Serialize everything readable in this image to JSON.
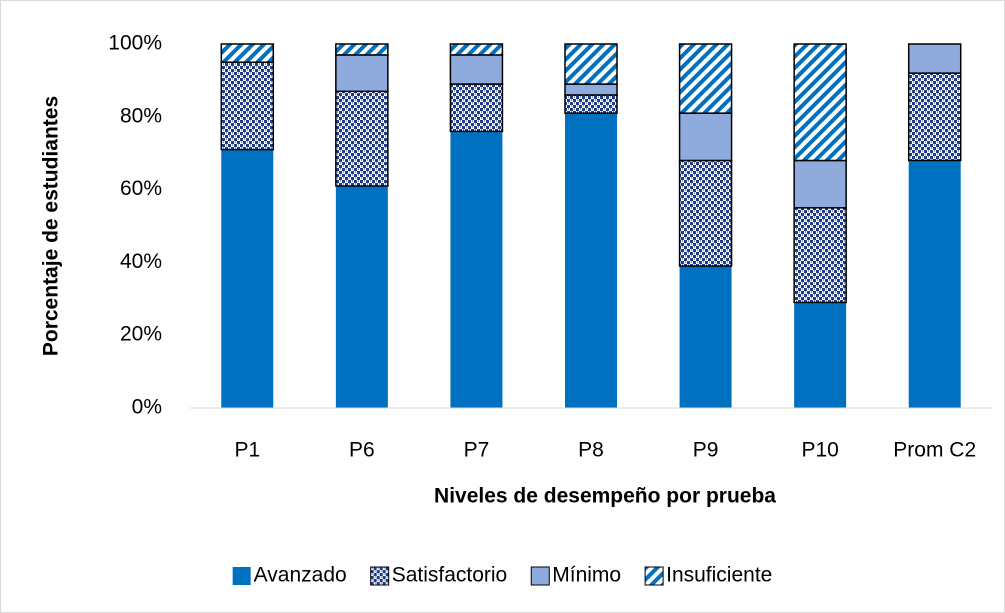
{
  "chart_data": {
    "type": "stacked_bar",
    "x_label": "Niveles de desempeño por prueba",
    "y_label": "Porcentaje de estudiantes",
    "categories": [
      "P1",
      "P6",
      "P7",
      "P8",
      "P9",
      "P10",
      "Prom C2"
    ],
    "series": [
      {
        "name": "Avanzado",
        "color": "#0070c0",
        "pattern": "solid",
        "values": [
          71,
          61,
          76,
          81,
          39,
          29,
          68
        ]
      },
      {
        "name": "Satisfactorio",
        "color": "#1f3c88",
        "pattern": "checker",
        "values": [
          24,
          26,
          13,
          5,
          29,
          26,
          24
        ]
      },
      {
        "name": "Mínimo",
        "color": "#8faadc",
        "pattern": "solid",
        "values": [
          0,
          10,
          8,
          3,
          13,
          13,
          8
        ]
      },
      {
        "name": "Insuficiente",
        "color": "#0070c0",
        "pattern": "hatch",
        "values": [
          5,
          3,
          3,
          11,
          19,
          32,
          0
        ]
      }
    ],
    "ylim": [
      0,
      100
    ],
    "yticks": [
      {
        "value": 0,
        "label": "0%"
      },
      {
        "value": 20,
        "label": "20%"
      },
      {
        "value": 40,
        "label": "40%"
      },
      {
        "value": 60,
        "label": "60%"
      },
      {
        "value": 80,
        "label": "80%"
      },
      {
        "value": 100,
        "label": "100%"
      }
    ],
    "grid": false,
    "legend": "bottom"
  }
}
